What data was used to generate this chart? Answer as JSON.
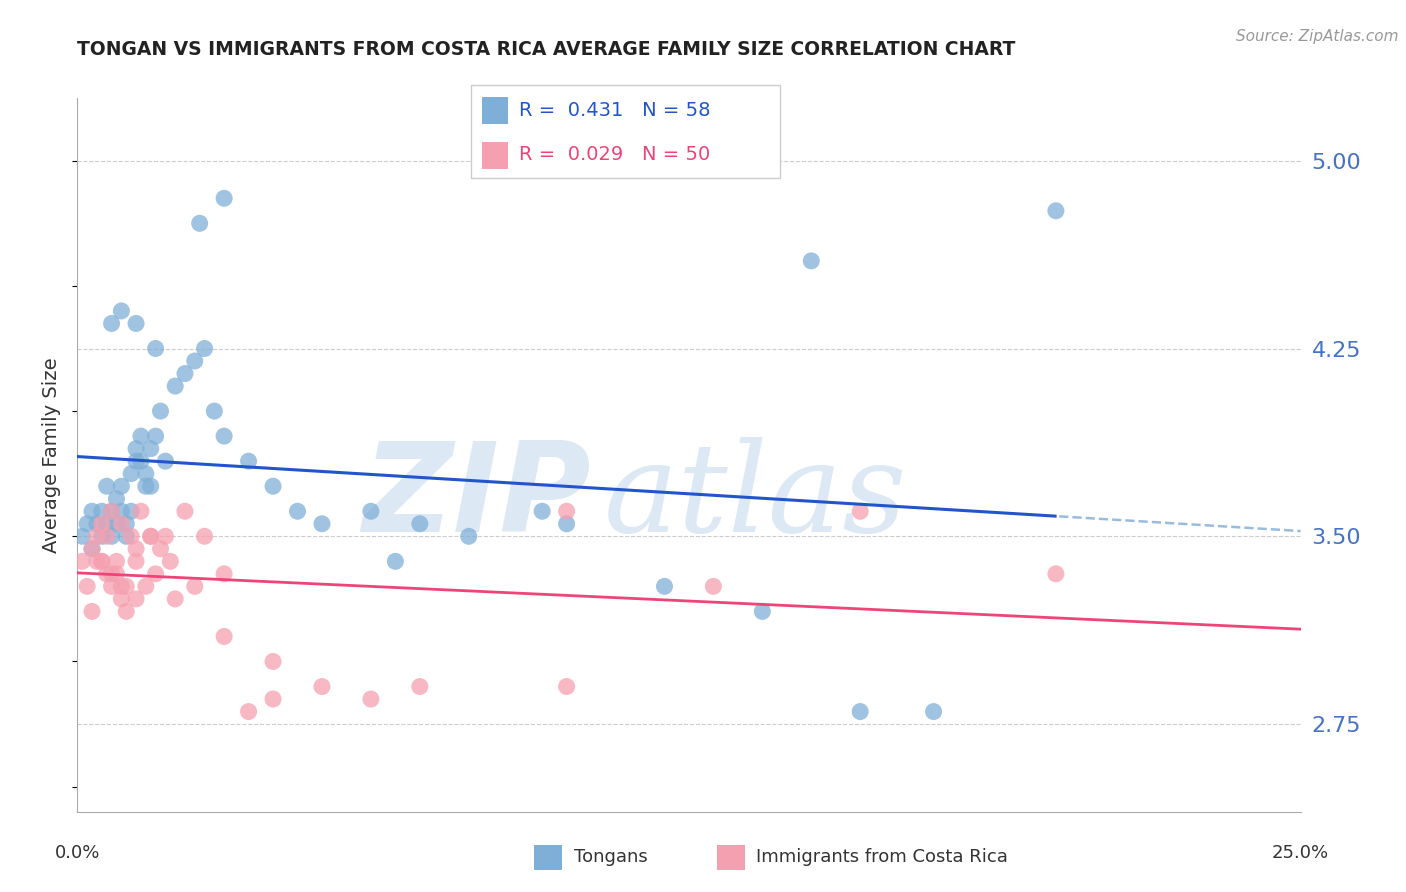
{
  "title": "TONGAN VS IMMIGRANTS FROM COSTA RICA AVERAGE FAMILY SIZE CORRELATION CHART",
  "source": "Source: ZipAtlas.com",
  "ylabel": "Average Family Size",
  "yticks": [
    2.75,
    3.5,
    4.25,
    5.0
  ],
  "xlim": [
    0.0,
    0.25
  ],
  "ylim": [
    2.4,
    5.25
  ],
  "background_color": "#ffffff",
  "grid_color": "#cccccc",
  "title_color": "#222222",
  "right_axis_color": "#4472c4",
  "watermark_zip": "ZIP",
  "watermark_atlas": "atlas",
  "watermark_color": "#dde8f5",
  "blue_color": "#7fafd6",
  "pink_color": "#f5a0b0",
  "blue_line_color": "#2255cc",
  "pink_line_color": "#ee4477",
  "dashed_line_color": "#99bbdd",
  "tongan_x": [
    0.001,
    0.002,
    0.003,
    0.003,
    0.004,
    0.005,
    0.005,
    0.006,
    0.006,
    0.007,
    0.007,
    0.008,
    0.008,
    0.009,
    0.009,
    0.01,
    0.01,
    0.011,
    0.011,
    0.012,
    0.012,
    0.013,
    0.013,
    0.014,
    0.014,
    0.015,
    0.015,
    0.016,
    0.017,
    0.018,
    0.02,
    0.022,
    0.024,
    0.026,
    0.028,
    0.03,
    0.035,
    0.04,
    0.045,
    0.05,
    0.06,
    0.065,
    0.07,
    0.08,
    0.095,
    0.1,
    0.12,
    0.14,
    0.16,
    0.175,
    0.007,
    0.009,
    0.012,
    0.016,
    0.025,
    0.03,
    0.15,
    0.2
  ],
  "tongan_y": [
    3.5,
    3.55,
    3.6,
    3.45,
    3.55,
    3.6,
    3.5,
    3.55,
    3.7,
    3.6,
    3.5,
    3.65,
    3.55,
    3.6,
    3.7,
    3.5,
    3.55,
    3.6,
    3.75,
    3.8,
    3.85,
    3.9,
    3.8,
    3.7,
    3.75,
    3.7,
    3.85,
    3.9,
    4.0,
    3.8,
    4.1,
    4.15,
    4.2,
    4.25,
    4.0,
    3.9,
    3.8,
    3.7,
    3.6,
    3.55,
    3.6,
    3.4,
    3.55,
    3.5,
    3.6,
    3.55,
    3.3,
    3.2,
    2.8,
    2.8,
    4.35,
    4.4,
    4.35,
    4.25,
    4.75,
    4.85,
    4.6,
    4.8
  ],
  "cr_x": [
    0.001,
    0.002,
    0.003,
    0.004,
    0.004,
    0.005,
    0.005,
    0.006,
    0.006,
    0.007,
    0.007,
    0.008,
    0.008,
    0.009,
    0.009,
    0.01,
    0.01,
    0.011,
    0.012,
    0.012,
    0.013,
    0.014,
    0.015,
    0.016,
    0.017,
    0.018,
    0.019,
    0.02,
    0.022,
    0.024,
    0.026,
    0.03,
    0.03,
    0.035,
    0.04,
    0.04,
    0.05,
    0.06,
    0.07,
    0.1,
    0.13,
    0.16,
    0.003,
    0.005,
    0.007,
    0.009,
    0.012,
    0.015,
    0.1,
    0.2
  ],
  "cr_y": [
    3.4,
    3.3,
    3.45,
    3.5,
    3.4,
    3.55,
    3.4,
    3.35,
    3.5,
    3.6,
    3.3,
    3.35,
    3.4,
    3.55,
    3.25,
    3.3,
    3.2,
    3.5,
    3.4,
    3.25,
    3.6,
    3.3,
    3.5,
    3.35,
    3.45,
    3.5,
    3.4,
    3.25,
    3.6,
    3.3,
    3.5,
    3.35,
    3.1,
    2.8,
    3.0,
    2.85,
    2.9,
    2.85,
    2.9,
    2.9,
    3.3,
    3.6,
    3.2,
    3.4,
    3.35,
    3.3,
    3.45,
    3.5,
    3.6,
    3.35
  ]
}
